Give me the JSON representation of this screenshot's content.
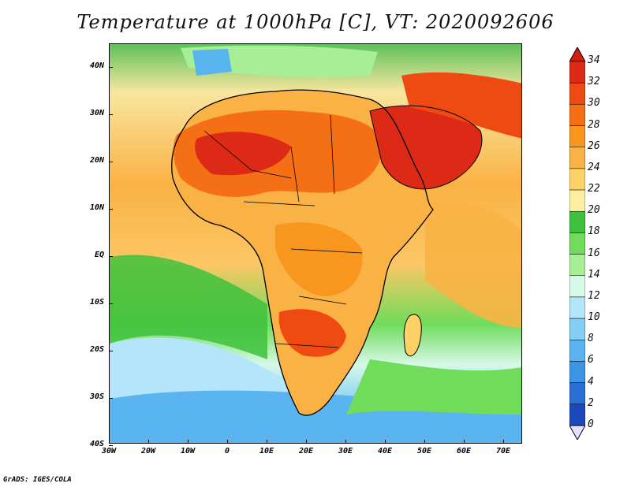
{
  "title": "Temperature at 1000hPa [C], VT: 2020092606",
  "footer": "GrADS: IGES/COLA",
  "axes": {
    "lat_labels": [
      "40N",
      "30N",
      "20N",
      "10N",
      "EQ",
      "10S",
      "20S",
      "30S",
      "40S"
    ],
    "lon_labels": [
      "30W",
      "20W",
      "10W",
      "0",
      "10E",
      "20E",
      "30E",
      "40E",
      "50E",
      "60E",
      "70E"
    ]
  },
  "colorbar": {
    "labels": [
      "34",
      "32",
      "30",
      "28",
      "26",
      "24",
      "22",
      "20",
      "18",
      "16",
      "14",
      "12",
      "10",
      "8",
      "6",
      "4",
      "2",
      "0"
    ],
    "colors": [
      "#dd2a16",
      "#ee4a12",
      "#f56f14",
      "#f8961e",
      "#fab244",
      "#fdd166",
      "#fdf0a0",
      "#3ec13c",
      "#70dc5a",
      "#a6ef96",
      "#d7f9e8",
      "#b4e5fb",
      "#84cdf5",
      "#5ab4ef",
      "#3b94e4",
      "#2a6fd6",
      "#1c48bd",
      "#0c1f84"
    ],
    "top_color": "#d21e0c",
    "bottom_color": "#e6e0ff"
  }
}
